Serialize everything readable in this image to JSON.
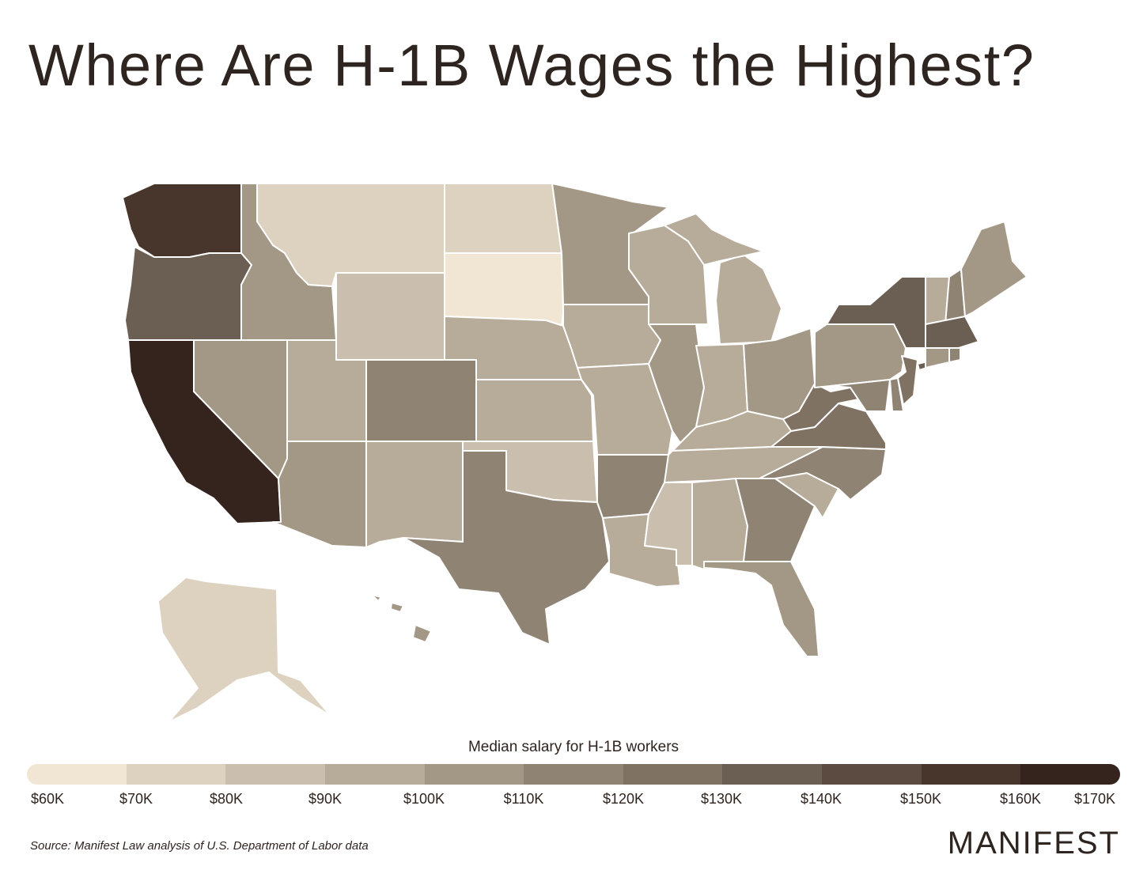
{
  "title": "Where Are H-1B Wages the Highest?",
  "legend": {
    "title": "Median salary for H-1B workers",
    "ticks": [
      "$60K",
      "$70K",
      "$80K",
      "$90K",
      "$100K",
      "$110K",
      "$120K",
      "$130K",
      "$140K",
      "$150K",
      "$160K",
      "$170K"
    ],
    "colors": [
      "#f1e6d3",
      "#ddd2c0",
      "#cabfae",
      "#b7ab9a",
      "#a39785",
      "#8f8374",
      "#7f7263",
      "#6b5e52",
      "#5b4b40",
      "#48362d",
      "#34241d"
    ]
  },
  "source": "Source: Manifest Law analysis of U.S. Department of Labor data",
  "brand": "MANIFEST",
  "map_data": {
    "type": "choropleth",
    "region": "United States",
    "value_unit": "median salary bin (legend index, 0 = $60K–$70K)",
    "states": {
      "WA": 9,
      "OR": 7,
      "CA": 10,
      "ID": 4,
      "NV": 4,
      "MT": 1,
      "WY": 2,
      "UT": 3,
      "AZ": 4,
      "CO": 5,
      "NM": 3,
      "ND": 1,
      "SD": 0,
      "NE": 3,
      "KS": 3,
      "OK": 2,
      "TX": 5,
      "MN": 4,
      "IA": 3,
      "MO": 3,
      "AR": 5,
      "LA": 3,
      "WI": 3,
      "IL": 4,
      "MI": 3,
      "IN": 3,
      "OH": 4,
      "KY": 3,
      "TN": 3,
      "MS": 2,
      "AL": 3,
      "GA": 5,
      "FL": 4,
      "SC": 3,
      "NC": 5,
      "VA": 6,
      "WV": 6,
      "PA": 4,
      "NY": 7,
      "MD": 5,
      "DE": 5,
      "NJ": 6,
      "VT": 3,
      "NH": 5,
      "ME": 4,
      "MA": 7,
      "CT": 4,
      "RI": 5,
      "AK": 1,
      "HI": 4
    }
  }
}
